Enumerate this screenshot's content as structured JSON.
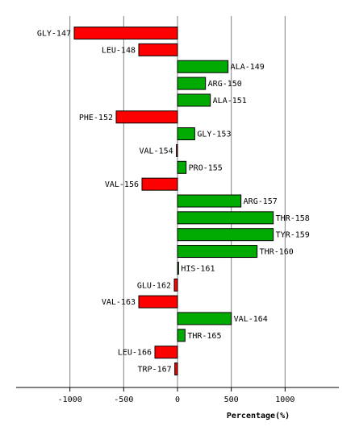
{
  "chart_data": {
    "type": "bar",
    "orientation": "horizontal",
    "xlabel": "Percentage(%)",
    "xlim": [
      -1500,
      1500
    ],
    "xticks": [
      -1000,
      -500,
      0,
      500,
      1000
    ],
    "xtick_labels": [
      "-1000",
      "-500",
      "0",
      "500",
      "1000"
    ],
    "grid": true,
    "colors": {
      "positive": "#00aa00",
      "negative": "#ff0000",
      "grid": "#808080",
      "axis": "#000000"
    },
    "categories": [
      "GLY-147",
      "LEU-148",
      "ALA-149",
      "ARG-150",
      "ALA-151",
      "PHE-152",
      "GLY-153",
      "VAL-154",
      "PRO-155",
      "VAL-156",
      "ARG-157",
      "THR-158",
      "TYR-159",
      "THR-160",
      "HIS-161",
      "GLU-162",
      "VAL-163",
      "VAL-164",
      "THR-165",
      "LEU-166",
      "TRP-167"
    ],
    "values": [
      -960,
      -360,
      470,
      260,
      305,
      -570,
      160,
      -10,
      80,
      -330,
      590,
      890,
      890,
      740,
      10,
      -30,
      -360,
      500,
      70,
      -210,
      -25
    ]
  }
}
